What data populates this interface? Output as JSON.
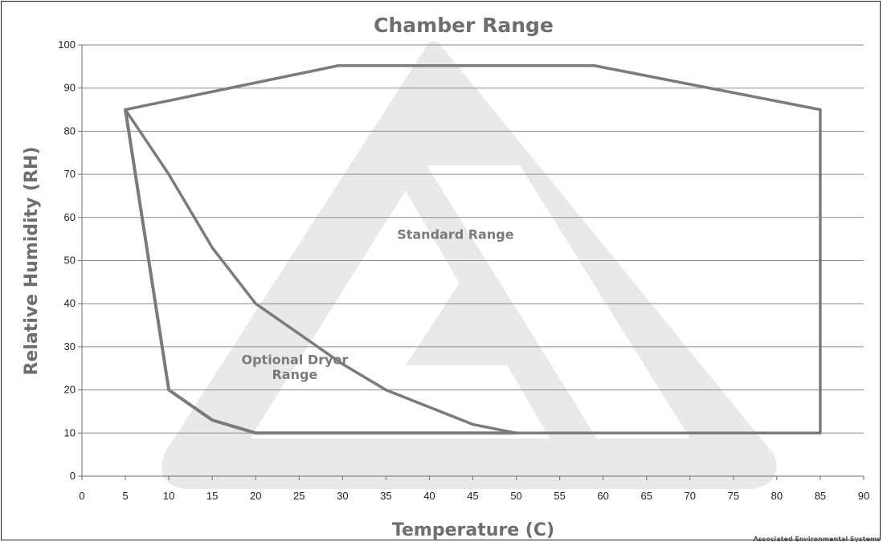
{
  "chart_data": {
    "type": "line",
    "title": "Chamber Range",
    "xlabel": "Temperature (C)",
    "ylabel": "Relative Humidity (RH)",
    "xlim": [
      0,
      90
    ],
    "ylim": [
      0,
      100
    ],
    "x_ticks": [
      0,
      5,
      10,
      15,
      20,
      25,
      30,
      35,
      40,
      45,
      50,
      55,
      60,
      65,
      70,
      75,
      80,
      85,
      90
    ],
    "y_ticks": [
      0,
      10,
      20,
      30,
      40,
      50,
      60,
      70,
      80,
      90,
      100
    ],
    "grid": "horizontal",
    "line_color": "#7b7b7b",
    "series": [
      {
        "name": "Standard Range",
        "x": [
          5,
          29.5,
          59,
          85,
          85,
          50,
          45,
          35,
          30,
          20,
          15,
          10,
          5
        ],
        "y": [
          85,
          95.2,
          95.2,
          85,
          10,
          10,
          12,
          20,
          26,
          40,
          53,
          70,
          85
        ]
      },
      {
        "name": "Optional Dryer Range",
        "x": [
          5,
          10,
          15,
          20,
          50
        ],
        "y": [
          85,
          20,
          13,
          10,
          10
        ]
      }
    ],
    "annotations": [
      {
        "text": "Standard Range",
        "x": 43,
        "y": 55
      },
      {
        "text": "Optional Dryer",
        "x": 24.5,
        "y": 26
      },
      {
        "text": "Range",
        "x": 24.5,
        "y": 22.5
      }
    ],
    "watermark": "triangle logo",
    "credit": "Associated Environmental Systems"
  }
}
